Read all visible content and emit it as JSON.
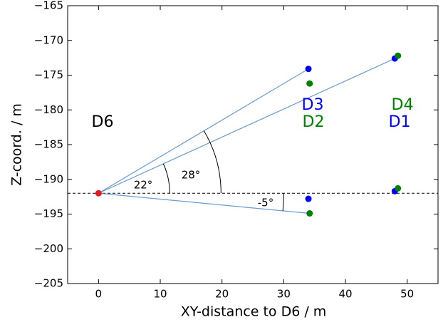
{
  "chart_data": {
    "type": "scatter",
    "xlabel": "XY-distance to D6 / m",
    "ylabel": "Z-coord. / m",
    "xlim": [
      -5,
      55
    ],
    "ylim": [
      -205,
      -165
    ],
    "xticks": [
      0,
      10,
      20,
      30,
      40,
      50
    ],
    "yticks": [
      {
        "value": -205,
        "label": "−205"
      },
      {
        "value": -200,
        "label": "−200"
      },
      {
        "value": -195,
        "label": "−195"
      },
      {
        "value": -190,
        "label": "−190"
      },
      {
        "value": -185,
        "label": "−185"
      },
      {
        "value": -180,
        "label": "−180"
      },
      {
        "value": -175,
        "label": "−175"
      },
      {
        "value": -170,
        "label": "−170"
      },
      {
        "value": -165,
        "label": "−165"
      }
    ],
    "reference_line": -192,
    "lines": [
      {
        "color": "#6a9bd1",
        "x": [
          0,
          34
        ],
        "values": [
          -192,
          -174.1
        ]
      },
      {
        "color": "#6a9bd1",
        "x": [
          0,
          48
        ],
        "values": [
          -192,
          -172.6
        ]
      },
      {
        "color": "#6a9bd1",
        "x": [
          0,
          34.2
        ],
        "values": [
          -192,
          -194.9
        ]
      }
    ],
    "series": [
      {
        "color": "#e41a1c",
        "x": [
          0
        ],
        "values": [
          -192
        ]
      },
      {
        "color": "#0000ff",
        "x": [
          34,
          34,
          48,
          48
        ],
        "values": [
          -174.1,
          -192.8,
          -172.6,
          -191.7
        ]
      },
      {
        "color": "#008000",
        "x": [
          34.2,
          34.2,
          48.5,
          48.5
        ],
        "values": [
          -176.2,
          -194.9,
          -172.2,
          -191.3
        ]
      }
    ],
    "annotations": [
      {
        "text": "D6",
        "color": "#000000"
      },
      {
        "text": "D3",
        "color": "#0000ff"
      },
      {
        "text": "D2",
        "color": "#008000"
      },
      {
        "text": "D4",
        "color": "#008000"
      },
      {
        "text": "D1",
        "color": "#0000ff"
      },
      {
        "text": "22°",
        "color": "#000000"
      },
      {
        "text": "28°",
        "color": "#000000"
      },
      {
        "text": "-5°",
        "color": "#000000"
      }
    ]
  }
}
